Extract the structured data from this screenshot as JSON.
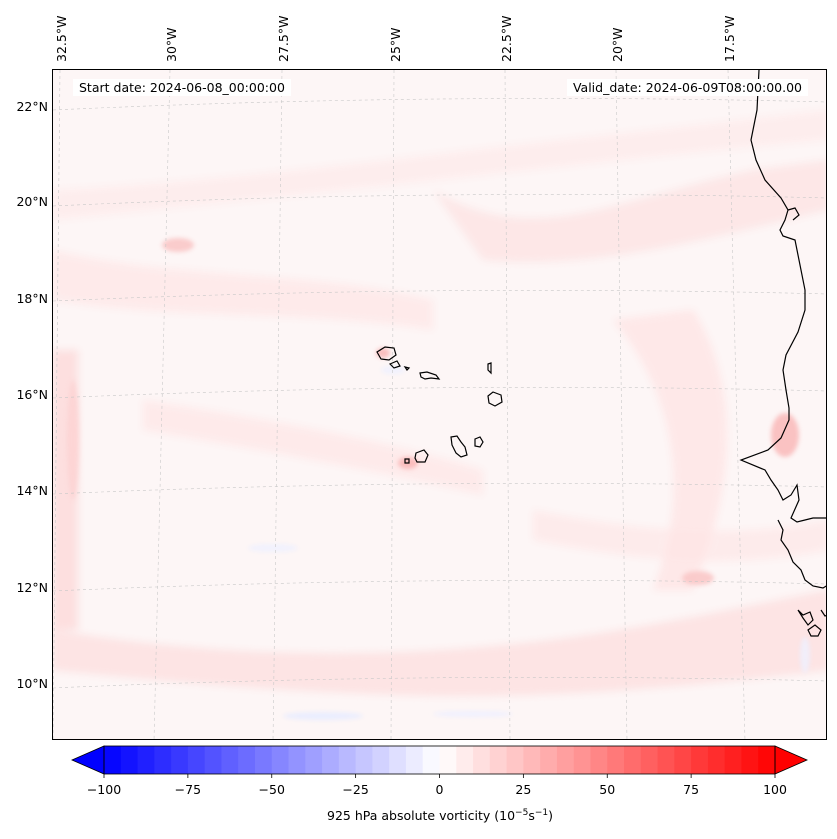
{
  "map": {
    "start_date": "Start date: 2024-06-08_00:00:00",
    "valid_date": "Valid_date: 2024-06-09T08:00:00.00",
    "longitude_labels": [
      "32.5°W",
      "30°W",
      "27.5°W",
      "25°W",
      "22.5°W",
      "20°W",
      "17.5°W"
    ],
    "latitude_labels": [
      "22°N",
      "20°N",
      "18°N",
      "16°N",
      "14°N",
      "12°N",
      "10°N"
    ],
    "colors": {
      "land_outline": "#000000",
      "gridline": "#c8c8c8",
      "background_field": "#fdf6f6"
    }
  },
  "colorbar": {
    "label_prefix": "925 hPa absolute vorticity (10",
    "label_exp1": "−5",
    "label_mid": "s",
    "label_exp2": "−1",
    "label_suffix": ")",
    "ticks": [
      "−100",
      "−75",
      "−50",
      "−25",
      "0",
      "25",
      "50",
      "75",
      "100"
    ],
    "min": -100,
    "max": 100,
    "colors": {
      "negative_end": "#0000ff",
      "center": "#ffffff",
      "positive_end": "#ff0000"
    }
  }
}
